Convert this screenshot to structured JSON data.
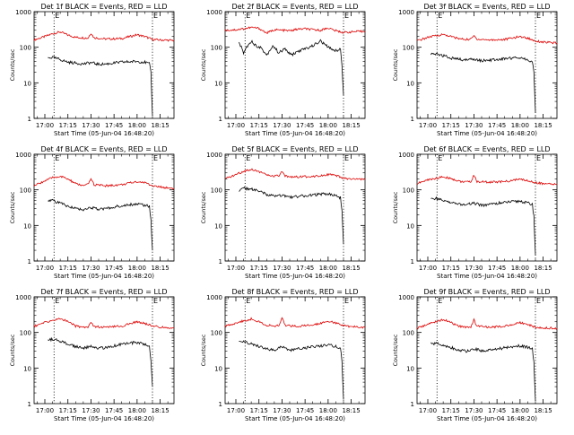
{
  "figure": {
    "xlabel": "Start Time (05-Jun-04 16:48:20)",
    "ylabel": "Counts/sec",
    "x_tick_labels": [
      "17:00",
      "17:15",
      "17:30",
      "17:45",
      "18:00",
      "18:15"
    ],
    "y_tick_labels": [
      "1",
      "10",
      "100",
      "1000"
    ],
    "marker_label": "E",
    "colors": {
      "events": "#000000",
      "lld": "#dd0000",
      "axes": "#000000"
    }
  },
  "chart_data": [
    {
      "type": "line",
      "title": "Det 1f BLACK = Events, RED = LLD",
      "xlim": [
        "16:53",
        "18:24"
      ],
      "ylim": [
        1,
        1000
      ],
      "yscale": "log",
      "markers_x": [
        "17:06",
        "18:10"
      ],
      "series": [
        {
          "name": "LLD",
          "color": "#dd0000",
          "x": [
            "16:53",
            "17:00",
            "17:05",
            "17:10",
            "17:15",
            "17:20",
            "17:25",
            "17:28",
            "17:30",
            "17:32",
            "17:40",
            "17:50",
            "18:00",
            "18:05",
            "18:10",
            "18:15",
            "18:24"
          ],
          "y": [
            160,
            200,
            240,
            270,
            220,
            190,
            185,
            180,
            250,
            185,
            170,
            175,
            225,
            200,
            165,
            160,
            155
          ]
        },
        {
          "name": "Events",
          "color": "#000000",
          "x": [
            "17:02",
            "17:05",
            "17:10",
            "17:15",
            "17:20",
            "17:25",
            "17:30",
            "17:35",
            "17:40",
            "17:45",
            "17:50",
            "17:55",
            "18:00",
            "18:05",
            "18:08",
            "18:09",
            "18:10"
          ],
          "y": [
            50,
            52,
            45,
            38,
            36,
            34,
            37,
            33,
            34,
            36,
            38,
            39,
            40,
            38,
            34,
            20,
            1.2
          ]
        }
      ]
    },
    {
      "type": "line",
      "title": "Det 2f BLACK = Events, RED = LLD",
      "xlim": [
        "16:53",
        "18:24"
      ],
      "ylim": [
        1,
        1000
      ],
      "yscale": "log",
      "markers_x": [
        "17:06",
        "18:10"
      ],
      "series": [
        {
          "name": "LLD",
          "color": "#dd0000",
          "x": [
            "16:53",
            "17:00",
            "17:05",
            "17:10",
            "17:15",
            "17:20",
            "17:25",
            "17:30",
            "17:35",
            "17:40",
            "17:45",
            "17:50",
            "17:55",
            "18:00",
            "18:05",
            "18:10",
            "18:15",
            "18:24"
          ],
          "y": [
            300,
            310,
            330,
            360,
            340,
            250,
            310,
            300,
            290,
            320,
            330,
            310,
            300,
            350,
            290,
            260,
            270,
            280
          ]
        },
        {
          "name": "Events",
          "color": "#000000",
          "x": [
            "17:02",
            "17:05",
            "17:08",
            "17:10",
            "17:13",
            "17:16",
            "17:20",
            "17:24",
            "17:28",
            "17:32",
            "17:36",
            "17:40",
            "17:45",
            "17:50",
            "17:55",
            "18:00",
            "18:05",
            "18:08",
            "18:09",
            "18:10"
          ],
          "y": [
            140,
            70,
            120,
            150,
            110,
            100,
            60,
            110,
            70,
            90,
            60,
            75,
            90,
            110,
            150,
            100,
            80,
            90,
            30,
            4.5
          ]
        }
      ]
    },
    {
      "type": "line",
      "title": "Det 3f BLACK = Events, RED = LLD",
      "xlim": [
        "16:53",
        "18:24"
      ],
      "ylim": [
        1,
        1000
      ],
      "yscale": "log",
      "markers_x": [
        "17:06",
        "18:10"
      ],
      "series": [
        {
          "name": "LLD",
          "color": "#dd0000",
          "x": [
            "16:53",
            "17:00",
            "17:05",
            "17:10",
            "17:15",
            "17:20",
            "17:25",
            "17:28",
            "17:30",
            "17:32",
            "17:40",
            "17:50",
            "18:00",
            "18:05",
            "18:10",
            "18:15",
            "18:24"
          ],
          "y": [
            150,
            190,
            210,
            230,
            200,
            175,
            165,
            170,
            210,
            170,
            160,
            165,
            200,
            180,
            150,
            140,
            130
          ]
        },
        {
          "name": "Events",
          "color": "#000000",
          "x": [
            "17:02",
            "17:05",
            "17:10",
            "17:15",
            "17:20",
            "17:25",
            "17:30",
            "17:35",
            "17:40",
            "17:45",
            "17:50",
            "17:55",
            "18:00",
            "18:05",
            "18:08",
            "18:09",
            "18:10"
          ],
          "y": [
            62,
            64,
            58,
            50,
            46,
            44,
            47,
            42,
            43,
            45,
            48,
            50,
            52,
            45,
            38,
            20,
            1.5
          ]
        }
      ]
    },
    {
      "type": "line",
      "title": "Det 4f BLACK = Events, RED = LLD",
      "xlim": [
        "16:53",
        "18:24"
      ],
      "ylim": [
        1,
        1000
      ],
      "yscale": "log",
      "markers_x": [
        "17:06",
        "18:10"
      ],
      "series": [
        {
          "name": "LLD",
          "color": "#dd0000",
          "x": [
            "16:53",
            "17:00",
            "17:05",
            "17:10",
            "17:15",
            "17:20",
            "17:25",
            "17:28",
            "17:30",
            "17:32",
            "17:40",
            "17:50",
            "18:00",
            "18:05",
            "18:10",
            "18:15",
            "18:24"
          ],
          "y": [
            130,
            180,
            220,
            240,
            200,
            150,
            130,
            140,
            210,
            140,
            130,
            140,
            170,
            160,
            130,
            120,
            110
          ]
        },
        {
          "name": "Events",
          "color": "#000000",
          "x": [
            "17:02",
            "17:05",
            "17:10",
            "17:15",
            "17:20",
            "17:25",
            "17:30",
            "17:35",
            "17:40",
            "17:45",
            "17:50",
            "17:55",
            "18:00",
            "18:05",
            "18:08",
            "18:09",
            "18:10"
          ],
          "y": [
            52,
            50,
            42,
            35,
            30,
            28,
            32,
            28,
            30,
            33,
            36,
            38,
            40,
            37,
            34,
            15,
            2
          ]
        }
      ]
    },
    {
      "type": "line",
      "title": "Det 5f BLACK = Events, RED = LLD",
      "xlim": [
        "16:53",
        "18:24"
      ],
      "ylim": [
        1,
        1000
      ],
      "yscale": "log",
      "markers_x": [
        "17:06",
        "18:10"
      ],
      "series": [
        {
          "name": "LLD",
          "color": "#dd0000",
          "x": [
            "16:53",
            "17:00",
            "17:05",
            "17:10",
            "17:15",
            "17:20",
            "17:25",
            "17:28",
            "17:30",
            "17:32",
            "17:40",
            "17:50",
            "18:00",
            "18:05",
            "18:10",
            "18:15",
            "18:24"
          ],
          "y": [
            200,
            270,
            330,
            380,
            330,
            260,
            240,
            250,
            320,
            240,
            230,
            240,
            270,
            250,
            210,
            200,
            195
          ]
        },
        {
          "name": "Events",
          "color": "#000000",
          "x": [
            "17:02",
            "17:05",
            "17:10",
            "17:15",
            "17:20",
            "17:25",
            "17:30",
            "17:35",
            "17:40",
            "17:45",
            "17:50",
            "17:55",
            "18:00",
            "18:05",
            "18:08",
            "18:09",
            "18:10"
          ],
          "y": [
            95,
            110,
            105,
            90,
            75,
            65,
            70,
            62,
            65,
            68,
            72,
            75,
            78,
            70,
            60,
            25,
            3
          ]
        }
      ]
    },
    {
      "type": "line",
      "title": "Det 6f BLACK = Events, RED = LLD",
      "xlim": [
        "16:53",
        "18:24"
      ],
      "ylim": [
        1,
        1000
      ],
      "yscale": "log",
      "markers_x": [
        "17:06",
        "18:10"
      ],
      "series": [
        {
          "name": "LLD",
          "color": "#dd0000",
          "x": [
            "16:53",
            "17:00",
            "17:05",
            "17:10",
            "17:15",
            "17:20",
            "17:25",
            "17:28",
            "17:30",
            "17:32",
            "17:40",
            "17:50",
            "18:00",
            "18:05",
            "18:10",
            "18:15",
            "18:24"
          ],
          "y": [
            150,
            190,
            210,
            230,
            210,
            175,
            165,
            170,
            260,
            170,
            165,
            170,
            200,
            180,
            160,
            150,
            140
          ]
        },
        {
          "name": "Events",
          "color": "#000000",
          "x": [
            "17:02",
            "17:05",
            "17:10",
            "17:15",
            "17:20",
            "17:25",
            "17:30",
            "17:35",
            "17:40",
            "17:45",
            "17:50",
            "17:55",
            "18:00",
            "18:05",
            "18:08",
            "18:09",
            "18:10"
          ],
          "y": [
            55,
            58,
            50,
            44,
            40,
            38,
            42,
            37,
            39,
            42,
            44,
            46,
            48,
            43,
            38,
            18,
            1.5
          ]
        }
      ]
    },
    {
      "type": "line",
      "title": "Det 7f BLACK = Events, RED = LLD",
      "xlim": [
        "16:53",
        "18:24"
      ],
      "ylim": [
        1,
        1000
      ],
      "yscale": "log",
      "markers_x": [
        "17:06",
        "18:10"
      ],
      "series": [
        {
          "name": "LLD",
          "color": "#dd0000",
          "x": [
            "16:53",
            "17:00",
            "17:05",
            "17:10",
            "17:15",
            "17:20",
            "17:25",
            "17:28",
            "17:30",
            "17:32",
            "17:40",
            "17:50",
            "18:00",
            "18:05",
            "18:10",
            "18:15",
            "18:24"
          ],
          "y": [
            150,
            190,
            220,
            240,
            210,
            150,
            140,
            145,
            200,
            145,
            140,
            150,
            200,
            180,
            150,
            140,
            135
          ]
        },
        {
          "name": "Events",
          "color": "#000000",
          "x": [
            "17:02",
            "17:05",
            "17:10",
            "17:15",
            "17:20",
            "17:25",
            "17:30",
            "17:35",
            "17:40",
            "17:45",
            "17:50",
            "17:55",
            "18:00",
            "18:05",
            "18:08",
            "18:09",
            "18:10"
          ],
          "y": [
            62,
            64,
            58,
            48,
            40,
            36,
            42,
            36,
            38,
            42,
            46,
            50,
            52,
            46,
            40,
            15,
            3
          ]
        }
      ]
    },
    {
      "type": "line",
      "title": "Det 8f BLACK = Events, RED = LLD",
      "xlim": [
        "16:53",
        "18:24"
      ],
      "ylim": [
        1,
        1000
      ],
      "yscale": "log",
      "markers_x": [
        "17:06",
        "18:10"
      ],
      "series": [
        {
          "name": "LLD",
          "color": "#dd0000",
          "x": [
            "16:53",
            "17:00",
            "17:05",
            "17:10",
            "17:15",
            "17:20",
            "17:25",
            "17:28",
            "17:30",
            "17:32",
            "17:40",
            "17:50",
            "18:00",
            "18:05",
            "18:10",
            "18:15",
            "18:24"
          ],
          "y": [
            150,
            185,
            210,
            240,
            200,
            160,
            150,
            155,
            260,
            160,
            150,
            160,
            210,
            185,
            155,
            145,
            140
          ]
        },
        {
          "name": "Events",
          "color": "#000000",
          "x": [
            "17:02",
            "17:05",
            "17:10",
            "17:15",
            "17:20",
            "17:25",
            "17:30",
            "17:35",
            "17:40",
            "17:45",
            "17:50",
            "17:55",
            "18:00",
            "18:05",
            "18:08",
            "18:09",
            "18:10"
          ],
          "y": [
            52,
            54,
            48,
            40,
            34,
            32,
            40,
            32,
            34,
            36,
            40,
            42,
            45,
            40,
            36,
            16,
            1.3
          ]
        }
      ]
    },
    {
      "type": "line",
      "title": "Det 9f BLACK = Events, RED = LLD",
      "xlim": [
        "16:53",
        "18:24"
      ],
      "ylim": [
        1,
        1000
      ],
      "yscale": "log",
      "markers_x": [
        "17:06",
        "18:10"
      ],
      "series": [
        {
          "name": "LLD",
          "color": "#dd0000",
          "x": [
            "16:53",
            "17:00",
            "17:05",
            "17:10",
            "17:15",
            "17:20",
            "17:25",
            "17:28",
            "17:30",
            "17:32",
            "17:40",
            "17:50",
            "18:00",
            "18:05",
            "18:10",
            "18:15",
            "18:24"
          ],
          "y": [
            130,
            170,
            200,
            230,
            190,
            150,
            140,
            145,
            230,
            150,
            140,
            150,
            190,
            170,
            140,
            135,
            130
          ]
        },
        {
          "name": "Events",
          "color": "#000000",
          "x": [
            "17:02",
            "17:05",
            "17:10",
            "17:15",
            "17:20",
            "17:25",
            "17:30",
            "17:35",
            "17:40",
            "17:45",
            "17:50",
            "17:55",
            "18:00",
            "18:05",
            "18:08",
            "18:09",
            "18:10"
          ],
          "y": [
            48,
            50,
            45,
            38,
            32,
            30,
            36,
            30,
            32,
            34,
            37,
            40,
            42,
            38,
            34,
            14,
            1.2
          ]
        }
      ]
    }
  ]
}
